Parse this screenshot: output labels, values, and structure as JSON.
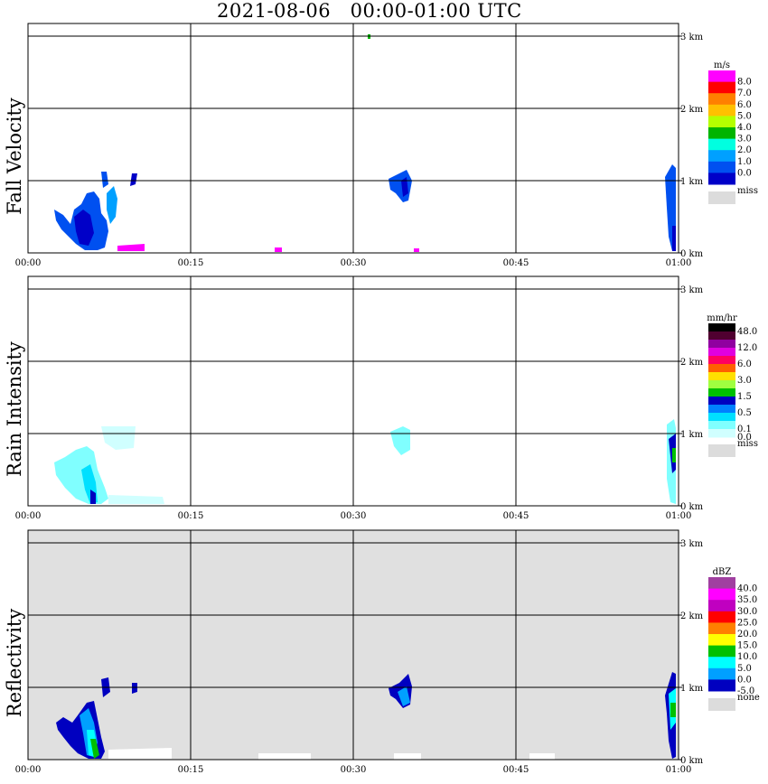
{
  "title": "2021-08-06   00:00-01:00 UTC",
  "x_ticks": [
    "00:00",
    "00:15",
    "00:30",
    "00:45",
    "01:00"
  ],
  "km_ticks": [
    "0 km",
    "1 km",
    "2 km",
    "3 km"
  ],
  "colors": {
    "background": "#ffffff",
    "grid": "#000000",
    "missing": "#dcdcdc"
  },
  "panels": [
    {
      "label": "Fall Velocity",
      "units": "m/s",
      "background": "#ffffff",
      "colorbar": [
        {
          "color": "#ff00ff",
          "label": "8.0"
        },
        {
          "color": "#ff0000",
          "label": "7.0"
        },
        {
          "color": "#ff8000",
          "label": "6.0"
        },
        {
          "color": "#ffc000",
          "label": "5.0"
        },
        {
          "color": "#b4ff00",
          "label": "4.0"
        },
        {
          "color": "#00b400",
          "label": "3.0"
        },
        {
          "color": "#00ffe0",
          "label": "2.0"
        },
        {
          "color": "#00a0ff",
          "label": "1.0"
        },
        {
          "color": "#0050f0",
          "label": "0.0"
        },
        {
          "color": "#0000c8",
          "label": ""
        }
      ],
      "miss_label": "miss"
    },
    {
      "label": "Rain Intensity",
      "units": "mm/hr",
      "background": "#ffffff",
      "colorbar": [
        {
          "color": "#000000",
          "label": "48.0"
        },
        {
          "color": "#500030",
          "label": ""
        },
        {
          "color": "#9000a0",
          "label": "12.0"
        },
        {
          "color": "#e000e0",
          "label": ""
        },
        {
          "color": "#ff0060",
          "label": "6.0"
        },
        {
          "color": "#ff6000",
          "label": ""
        },
        {
          "color": "#ffe000",
          "label": "3.0"
        },
        {
          "color": "#a0ff40",
          "label": ""
        },
        {
          "color": "#00c000",
          "label": "1.5"
        },
        {
          "color": "#0000c0",
          "label": ""
        },
        {
          "color": "#0080ff",
          "label": "0.5"
        },
        {
          "color": "#00e0ff",
          "label": ""
        },
        {
          "color": "#80ffff",
          "label": "0.1"
        },
        {
          "color": "#d0ffff",
          "label": "0.0"
        }
      ],
      "miss_label": "miss"
    },
    {
      "label": "Reflectivity",
      "units": "dBZ",
      "background": "#e0e0e0",
      "colorbar": [
        {
          "color": "#a040a0",
          "label": "40.0"
        },
        {
          "color": "#ff00ff",
          "label": "35.0"
        },
        {
          "color": "#c000c0",
          "label": "30.0"
        },
        {
          "color": "#ff0000",
          "label": "25.0"
        },
        {
          "color": "#ff8000",
          "label": "20.0"
        },
        {
          "color": "#ffff00",
          "label": "15.0"
        },
        {
          "color": "#00c000",
          "label": "10.0"
        },
        {
          "color": "#00ffff",
          "label": "5.0"
        },
        {
          "color": "#00a0ff",
          "label": "0.0"
        },
        {
          "color": "#0000c0",
          "label": "-5.0"
        }
      ],
      "miss_label": "none"
    }
  ],
  "chart_data": {
    "type": "heatmap",
    "x_range": [
      "00:00",
      "01:00"
    ],
    "y_range_km": [
      0,
      3.2
    ],
    "grid": true
  }
}
